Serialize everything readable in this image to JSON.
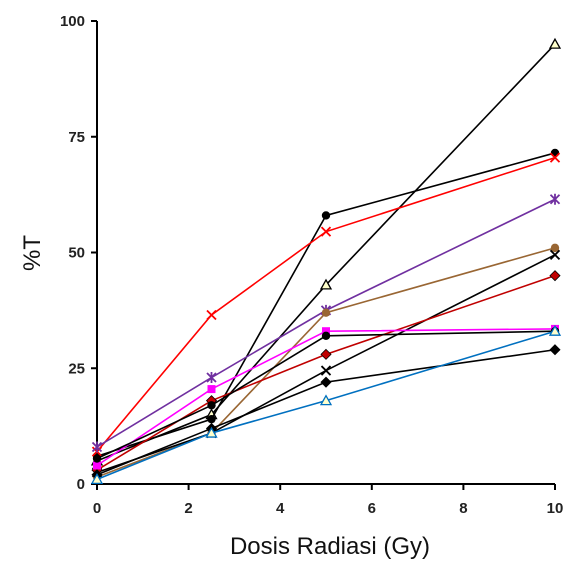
{
  "chart_data": {
    "type": "line",
    "title": "",
    "xlabel": "Dosis Radiasi (Gy)",
    "ylabel": "%T",
    "xlim": [
      0,
      10
    ],
    "ylim": [
      0,
      100
    ],
    "xticks": [
      0,
      2,
      4,
      6,
      8,
      10
    ],
    "yticks": [
      0,
      25,
      50,
      75,
      100
    ],
    "grid": false,
    "legend": "none",
    "series": [
      {
        "color": "#000000",
        "marker": "triangle-open",
        "x": [
          0,
          2.5,
          5,
          10
        ],
        "y": [
          5,
          15,
          43,
          95
        ]
      },
      {
        "color": "#000000",
        "marker": "circle",
        "x": [
          0,
          2.5,
          5,
          10
        ],
        "y": [
          6,
          14,
          58,
          71.5
        ]
      },
      {
        "color": "#ff0000",
        "marker": "x",
        "x": [
          0,
          2.5,
          5,
          10
        ],
        "y": [
          7,
          36.5,
          54.5,
          70.5
        ]
      },
      {
        "color": "#7030a0",
        "marker": "star",
        "x": [
          0,
          2.5,
          5,
          10
        ],
        "y": [
          8,
          23,
          37.5,
          61.5
        ]
      },
      {
        "color": "#996633",
        "marker": "circle",
        "x": [
          0,
          2.5,
          5,
          10
        ],
        "y": [
          1.5,
          11,
          37,
          51
        ]
      },
      {
        "color": "#000000",
        "marker": "x",
        "x": [
          0,
          2.5,
          5,
          10
        ],
        "y": [
          2.5,
          11,
          24.5,
          49.5
        ]
      },
      {
        "color": "#c00000",
        "marker": "diamond",
        "x": [
          0,
          2.5,
          5,
          10
        ],
        "y": [
          3,
          18,
          28,
          45
        ]
      },
      {
        "color": "#ff00ff",
        "marker": "square",
        "x": [
          0,
          2.5,
          5,
          10
        ],
        "y": [
          4,
          20.5,
          33,
          33.5
        ]
      },
      {
        "color": "#000000",
        "marker": "circle",
        "x": [
          0,
          2.5,
          5,
          10
        ],
        "y": [
          5.5,
          17,
          32,
          33
        ]
      },
      {
        "color": "#000000",
        "marker": "diamond",
        "x": [
          0,
          2.5,
          5,
          10
        ],
        "y": [
          2,
          12,
          22,
          29
        ]
      },
      {
        "color": "#0070c0",
        "marker": "triangle-open",
        "x": [
          0,
          2.5,
          5,
          10
        ],
        "y": [
          1,
          11,
          18,
          33
        ]
      }
    ]
  }
}
